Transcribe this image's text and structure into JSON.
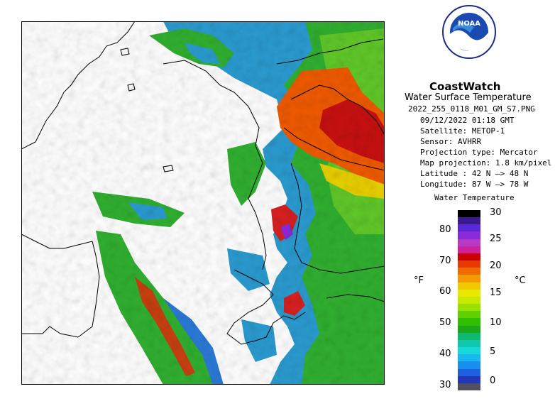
{
  "header": {
    "brand": "CoastWatch",
    "subtitle": "Water Surface Temperature",
    "filename": "2022_255_0118_M01_GM_S7.PNG",
    "date_time": "09/12/2022   01:18 GMT",
    "satellite": "Satellite: METOP-1",
    "sensor": "Sensor: AVHRR",
    "projection_type": "Projection type:  Mercator",
    "map_projection": "Map projection: 1.8 km/pixel",
    "latitude": "Latitude : 42 N –> 48 N",
    "longitude": "Longitude: 87 W –> 78 W",
    "logo_text": "NOAA"
  },
  "legend": {
    "title": "Water Temperature",
    "f_unit": "°F",
    "c_unit": "°C",
    "f_ticks": [
      "80",
      "70",
      "60",
      "50",
      "40",
      "30"
    ],
    "c_ticks": [
      "30",
      "25",
      "20",
      "15",
      "10",
      "5",
      "0"
    ],
    "colors": [
      "#000000",
      "#3a1a8c",
      "#5a28d8",
      "#8a2ad8",
      "#b838c8",
      "#d0209a",
      "#c80000",
      "#e83a00",
      "#f06a00",
      "#f29a00",
      "#f2c800",
      "#e8e800",
      "#c8e800",
      "#98e000",
      "#60d000",
      "#30c000",
      "#18a818",
      "#10b870",
      "#10c8b0",
      "#18d8d8",
      "#18b8f0",
      "#1890f0",
      "#2060e0",
      "#2038b8",
      "#505060"
    ]
  },
  "map": {
    "land_color": "#ffffff",
    "coast_color": "#000000"
  }
}
